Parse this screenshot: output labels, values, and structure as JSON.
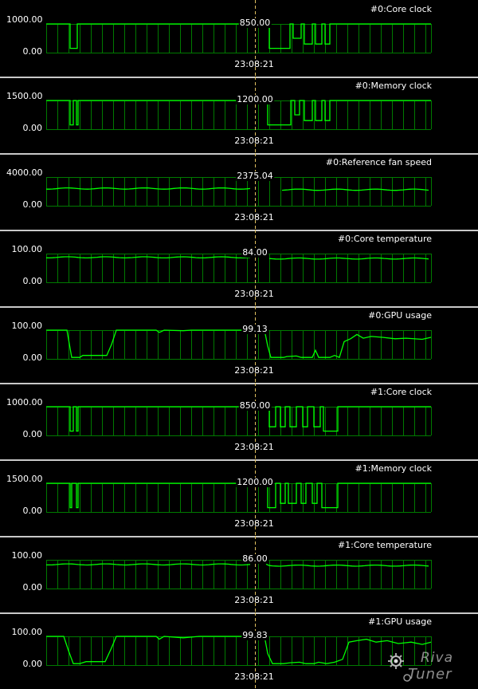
{
  "cursor_time": "23:08:21",
  "colors": {
    "trace": "#00ff00",
    "grid": "#007a00",
    "cursor": "#e0c060",
    "separator": "#c8c8c8"
  },
  "logo": {
    "line1": "Riva",
    "line2": "Tuner"
  },
  "graphs": [
    {
      "title": "#0:Core clock",
      "ymax_label": "1000.00",
      "ymin_label": "0.00",
      "current_label": "850.00"
    },
    {
      "title": "#0:Memory clock",
      "ymax_label": "1500.00",
      "ymin_label": "0.00",
      "current_label": "1200.00"
    },
    {
      "title": "#0:Reference fan speed",
      "ymax_label": "4000.00",
      "ymin_label": "0.00",
      "current_label": "2375.04"
    },
    {
      "title": "#0:Core temperature",
      "ymax_label": "100.00",
      "ymin_label": "0.00",
      "current_label": "84.00"
    },
    {
      "title": "#0:GPU usage",
      "ymax_label": "100.00",
      "ymin_label": "0.00",
      "current_label": "99.13"
    },
    {
      "title": "#1:Core clock",
      "ymax_label": "1000.00",
      "ymin_label": "0.00",
      "current_label": "850.00"
    },
    {
      "title": "#1:Memory clock",
      "ymax_label": "1500.00",
      "ymin_label": "0.00",
      "current_label": "1200.00"
    },
    {
      "title": "#1:Core temperature",
      "ymax_label": "100.00",
      "ymin_label": "0.00",
      "current_label": "86.00"
    },
    {
      "title": "#1:GPU usage",
      "ymax_label": "100.00",
      "ymin_label": "0.00",
      "current_label": "99.83"
    }
  ]
}
